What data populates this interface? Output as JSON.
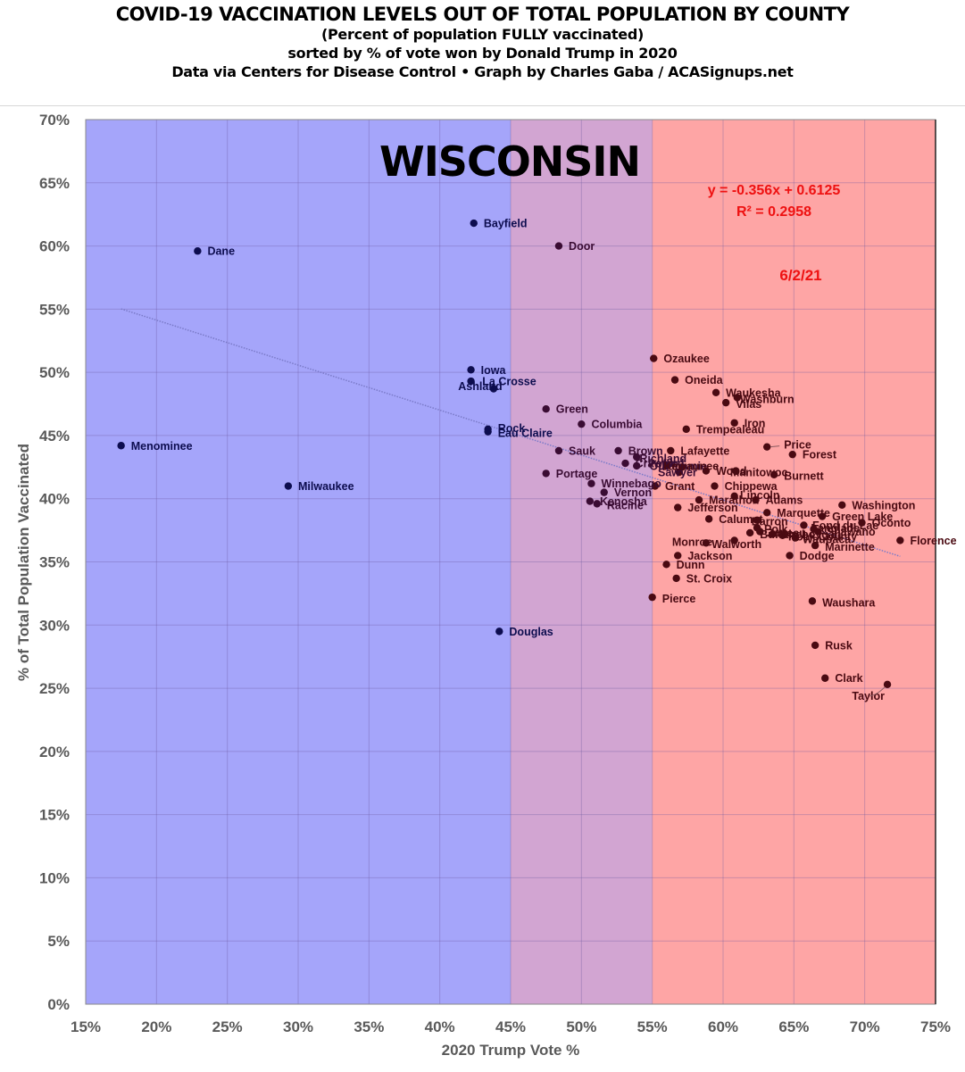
{
  "header": {
    "title": "COVID-19 VACCINATION LEVELS OUT OF TOTAL POPULATION BY COUNTY",
    "subtitle1": "(Percent of population FULLY vaccinated)",
    "subtitle2": "sorted by % of vote won by Donald Trump in 2020",
    "credit": "Data via Centers for Disease Control • Graph by Charles Gaba / ACASignups.net"
  },
  "chart_data": {
    "type": "scatter",
    "title": "COVID-19 VACCINATION LEVELS OUT OF TOTAL POPULATION BY COUNTY",
    "state_label": "WISCONSIN",
    "date_label": "6/2/21",
    "xlabel": "2020 Trump Vote %",
    "ylabel": "% of Total Population Vaccinated",
    "xlim": [
      15,
      75
    ],
    "ylim": [
      0,
      70
    ],
    "xticks": [
      "15%",
      "20%",
      "25%",
      "30%",
      "35%",
      "40%",
      "45%",
      "50%",
      "55%",
      "60%",
      "65%",
      "70%",
      "75%"
    ],
    "yticks": [
      "0%",
      "5%",
      "10%",
      "15%",
      "20%",
      "25%",
      "30%",
      "35%",
      "40%",
      "45%",
      "50%",
      "55%",
      "60%",
      "65%",
      "70%"
    ],
    "grid": true,
    "regions": [
      {
        "name": "blue",
        "from": 15,
        "to": 45,
        "color": "#a5a5fa"
      },
      {
        "name": "purple",
        "from": 45,
        "to": 55,
        "color": "#d2a5d2"
      },
      {
        "name": "red",
        "from": 55,
        "to": 75,
        "color": "#fea5a5"
      }
    ],
    "trendline": {
      "equation": "y = -0.356x + 0.6125",
      "r_squared": "R² = 0.2958",
      "slope": -0.356,
      "intercept": 0.6125,
      "x_range": [
        17.5,
        72.5
      ],
      "color": "#7a7ac8"
    },
    "annotation_color": "#ee1111",
    "points": [
      {
        "name": "Dane",
        "x": 22.9,
        "y": 59.6
      },
      {
        "name": "Menominee",
        "x": 17.5,
        "y": 44.2
      },
      {
        "name": "Milwaukee",
        "x": 29.3,
        "y": 41.0
      },
      {
        "name": "Bayfield",
        "x": 42.4,
        "y": 61.8
      },
      {
        "name": "Door",
        "x": 48.4,
        "y": 60.0
      },
      {
        "name": "Iowa",
        "x": 42.2,
        "y": 50.2
      },
      {
        "name": "La Crosse",
        "x": 42.2,
        "y": 49.3
      },
      {
        "name": "Ashland",
        "x": 43.8,
        "y": 48.7
      },
      {
        "name": "Rock",
        "x": 43.4,
        "y": 45.5
      },
      {
        "name": "Eau Claire",
        "x": 43.4,
        "y": 45.3
      },
      {
        "name": "Douglas",
        "x": 44.2,
        "y": 29.5
      },
      {
        "name": "Green",
        "x": 47.5,
        "y": 47.1
      },
      {
        "name": "Columbia",
        "x": 50.0,
        "y": 45.9
      },
      {
        "name": "Sauk",
        "x": 48.4,
        "y": 43.8
      },
      {
        "name": "Portage",
        "x": 47.5,
        "y": 42.0
      },
      {
        "name": "Brown",
        "x": 52.6,
        "y": 43.8
      },
      {
        "name": "Richland",
        "x": 53.9,
        "y": 43.3
      },
      {
        "name": "Crawford",
        "x": 53.1,
        "y": 42.8
      },
      {
        "name": "Outagamie",
        "x": 53.9,
        "y": 42.6
      },
      {
        "name": "Winnebago",
        "x": 50.7,
        "y": 41.2
      },
      {
        "name": "Vernon",
        "x": 51.6,
        "y": 40.5
      },
      {
        "name": "Kenosha",
        "x": 50.6,
        "y": 39.8
      },
      {
        "name": "Racine",
        "x": 51.1,
        "y": 39.6
      },
      {
        "name": "Ozaukee",
        "x": 55.1,
        "y": 51.1
      },
      {
        "name": "Oneida",
        "x": 56.6,
        "y": 49.4
      },
      {
        "name": "Waukesha",
        "x": 59.5,
        "y": 48.4
      },
      {
        "name": "Washburn",
        "x": 61.0,
        "y": 48.0
      },
      {
        "name": "Vilas",
        "x": 60.2,
        "y": 47.6
      },
      {
        "name": "Iron",
        "x": 60.8,
        "y": 46.0
      },
      {
        "name": "Trempealeau",
        "x": 57.4,
        "y": 45.5
      },
      {
        "name": "Lafayette",
        "x": 56.3,
        "y": 43.8
      },
      {
        "name": "Sawyer",
        "x": 56.9,
        "y": 42.1
      },
      {
        "name": "Pepin",
        "x": 56.0,
        "y": 42.6
      },
      {
        "name": "Kewaunee",
        "x": 57.1,
        "y": 42.5
      },
      {
        "name": "Wood",
        "x": 58.8,
        "y": 42.2
      },
      {
        "name": "Manitowoc",
        "x": 60.9,
        "y": 42.2
      },
      {
        "name": "Price",
        "x": 63.1,
        "y": 44.1
      },
      {
        "name": "Forest",
        "x": 64.9,
        "y": 43.5
      },
      {
        "name": "Burnett",
        "x": 63.6,
        "y": 41.9
      },
      {
        "name": "Grant",
        "x": 55.2,
        "y": 41.0
      },
      {
        "name": "Chippewa",
        "x": 59.4,
        "y": 41.0
      },
      {
        "name": "Lincoln",
        "x": 60.8,
        "y": 40.2
      },
      {
        "name": "Adams",
        "x": 62.3,
        "y": 39.9
      },
      {
        "name": "Marathon",
        "x": 58.3,
        "y": 39.9
      },
      {
        "name": "Jefferson",
        "x": 56.8,
        "y": 39.3
      },
      {
        "name": "Calumet",
        "x": 59.0,
        "y": 38.4
      },
      {
        "name": "Marquette",
        "x": 63.1,
        "y": 38.9
      },
      {
        "name": "Barron",
        "x": 62.4,
        "y": 38.3
      },
      {
        "name": "Green Lake",
        "x": 67.0,
        "y": 38.6
      },
      {
        "name": "Washington",
        "x": 68.4,
        "y": 39.5
      },
      {
        "name": "Oconto",
        "x": 69.8,
        "y": 38.1
      },
      {
        "name": "Fond du Lac",
        "x": 65.7,
        "y": 37.9
      },
      {
        "name": "Langlade",
        "x": 66.4,
        "y": 37.6
      },
      {
        "name": "Dodge",
        "x": 64.7,
        "y": 35.5
      },
      {
        "name": "Polk",
        "x": 62.4,
        "y": 37.7
      },
      {
        "name": "Juneau",
        "x": 62.6,
        "y": 37.4
      },
      {
        "name": "Buffalo",
        "x": 61.9,
        "y": 37.3
      },
      {
        "name": "Sheboygan",
        "x": 63.5,
        "y": 37.2
      },
      {
        "name": "Rock County",
        "x": 64.2,
        "y": 37.1
      },
      {
        "name": "Shawano",
        "x": 66.7,
        "y": 37.4
      },
      {
        "name": "Waupaca",
        "x": 65.1,
        "y": 36.9
      },
      {
        "name": "Marinette",
        "x": 66.5,
        "y": 36.3
      },
      {
        "name": "Florence",
        "x": 72.5,
        "y": 36.7
      },
      {
        "name": "Monroe",
        "x": 58.8,
        "y": 36.5
      },
      {
        "name": "Walworth",
        "x": 60.8,
        "y": 36.7
      },
      {
        "name": "Jackson",
        "x": 56.8,
        "y": 35.5
      },
      {
        "name": "Dunn",
        "x": 56.0,
        "y": 34.8
      },
      {
        "name": "St. Croix",
        "x": 56.7,
        "y": 33.7
      },
      {
        "name": "Pierce",
        "x": 55.0,
        "y": 32.2
      },
      {
        "name": "Waushara",
        "x": 66.3,
        "y": 31.9
      },
      {
        "name": "Rusk",
        "x": 66.5,
        "y": 28.4
      },
      {
        "name": "Clark",
        "x": 67.2,
        "y": 25.8
      },
      {
        "name": "Taylor",
        "x": 71.6,
        "y": 25.3
      }
    ],
    "labels": [
      {
        "name": "Dane",
        "x": 23.6,
        "y": 59.6
      },
      {
        "name": "Menominee",
        "x": 18.2,
        "y": 44.2
      },
      {
        "name": "Milwaukee",
        "x": 30.0,
        "y": 41.0
      },
      {
        "name": "Bayfield",
        "x": 43.1,
        "y": 61.8
      },
      {
        "name": "Door",
        "x": 49.1,
        "y": 60.0
      },
      {
        "name": "Iowa",
        "x": 42.9,
        "y": 50.2
      },
      {
        "name": "La Crosse",
        "x": 43.0,
        "y": 49.3
      },
      {
        "name": "Ashland",
        "x": 41.3,
        "y": 48.9
      },
      {
        "name": "Rock",
        "x": 44.1,
        "y": 45.6
      },
      {
        "name": "Eau Claire",
        "x": 44.1,
        "y": 45.2
      },
      {
        "name": "Douglas",
        "x": 44.9,
        "y": 29.5
      },
      {
        "name": "Green",
        "x": 48.2,
        "y": 47.1
      },
      {
        "name": "Columbia",
        "x": 50.7,
        "y": 45.9
      },
      {
        "name": "Sauk",
        "x": 49.1,
        "y": 43.8
      },
      {
        "name": "Portage",
        "x": 48.2,
        "y": 42.0
      },
      {
        "name": "Brown",
        "x": 53.3,
        "y": 43.8
      },
      {
        "name": "Richland",
        "x": 54.1,
        "y": 43.2
      },
      {
        "name": "Crawford",
        "x": 53.8,
        "y": 42.8
      },
      {
        "name": "Outagamie",
        "x": 54.8,
        "y": 42.6
      },
      {
        "name": "Winnebago",
        "x": 51.4,
        "y": 41.2
      },
      {
        "name": "Vernon",
        "x": 52.3,
        "y": 40.5
      },
      {
        "name": "Kenosha",
        "x": 51.3,
        "y": 39.8
      },
      {
        "name": "Racine",
        "x": 51.8,
        "y": 39.5
      },
      {
        "name": "Ozaukee",
        "x": 55.8,
        "y": 51.1
      },
      {
        "name": "Oneida",
        "x": 57.3,
        "y": 49.4
      },
      {
        "name": "Waukesha",
        "x": 60.2,
        "y": 48.4
      },
      {
        "name": "Washburn",
        "x": 61.2,
        "y": 47.9
      },
      {
        "name": "Vilas",
        "x": 60.9,
        "y": 47.5
      },
      {
        "name": "Iron",
        "x": 61.5,
        "y": 46.0
      },
      {
        "name": "Trempealeau",
        "x": 58.1,
        "y": 45.5
      },
      {
        "name": "Lafayette",
        "x": 57.0,
        "y": 43.8
      },
      {
        "name": "Sawyer",
        "x": 55.4,
        "y": 42.1
      },
      {
        "name": "Pepin",
        "x": 54.7,
        "y": 42.8
      },
      {
        "name": "Kewaunee",
        "x": 55.8,
        "y": 42.6
      },
      {
        "name": "Wood",
        "x": 59.5,
        "y": 42.2
      },
      {
        "name": "Manitowoc",
        "x": 60.5,
        "y": 42.1
      },
      {
        "name": "Price",
        "x": 64.3,
        "y": 44.3
      },
      {
        "name": "Forest",
        "x": 65.6,
        "y": 43.5
      },
      {
        "name": "Burnett",
        "x": 64.3,
        "y": 41.8
      },
      {
        "name": "Grant",
        "x": 55.9,
        "y": 41.0
      },
      {
        "name": "Chippewa",
        "x": 60.1,
        "y": 41.0
      },
      {
        "name": "Lincoln",
        "x": 61.2,
        "y": 40.3
      },
      {
        "name": "Adams",
        "x": 63.0,
        "y": 39.9
      },
      {
        "name": "Marathon",
        "x": 59.0,
        "y": 39.9
      },
      {
        "name": "Jefferson",
        "x": 57.5,
        "y": 39.3
      },
      {
        "name": "Calumet",
        "x": 59.7,
        "y": 38.4
      },
      {
        "name": "Marquette",
        "x": 63.8,
        "y": 38.9
      },
      {
        "name": "Barron",
        "x": 62.0,
        "y": 38.2
      },
      {
        "name": "Green Lake",
        "x": 67.7,
        "y": 38.6
      },
      {
        "name": "Washington",
        "x": 69.1,
        "y": 39.5
      },
      {
        "name": "Oconto",
        "x": 70.5,
        "y": 38.1
      },
      {
        "name": "Fond du Lac",
        "x": 66.3,
        "y": 37.9
      },
      {
        "name": "Langlade",
        "x": 66.2,
        "y": 37.7
      },
      {
        "name": "Dodge",
        "x": 65.4,
        "y": 35.5
      },
      {
        "name": "Polk",
        "x": 62.9,
        "y": 37.6
      },
      {
        "name": "Juneau",
        "x": 63.1,
        "y": 37.3
      },
      {
        "name": "Buffalo",
        "x": 62.6,
        "y": 37.2
      },
      {
        "name": "Sheboygan",
        "x": 64.1,
        "y": 37.2
      },
      {
        "name": "Rock County",
        "x": 64.6,
        "y": 37.0
      },
      {
        "name": "Shawano",
        "x": 67.3,
        "y": 37.4
      },
      {
        "name": "Waupaca",
        "x": 65.6,
        "y": 36.8
      },
      {
        "name": "Marinette",
        "x": 67.2,
        "y": 36.2
      },
      {
        "name": "Florence",
        "x": 73.2,
        "y": 36.7
      },
      {
        "name": "Monroe",
        "x": 56.4,
        "y": 36.6
      },
      {
        "name": "Walworth",
        "x": 59.2,
        "y": 36.4
      },
      {
        "name": "Jackson",
        "x": 57.5,
        "y": 35.5
      },
      {
        "name": "Dunn",
        "x": 56.7,
        "y": 34.8
      },
      {
        "name": "St. Croix",
        "x": 57.4,
        "y": 33.7
      },
      {
        "name": "Pierce",
        "x": 55.7,
        "y": 32.1
      },
      {
        "name": "Waushara",
        "x": 67.0,
        "y": 31.8
      },
      {
        "name": "Rusk",
        "x": 67.2,
        "y": 28.4
      },
      {
        "name": "Clark",
        "x": 67.9,
        "y": 25.8
      },
      {
        "name": "Taylor",
        "x": 69.1,
        "y": 24.4
      }
    ]
  }
}
